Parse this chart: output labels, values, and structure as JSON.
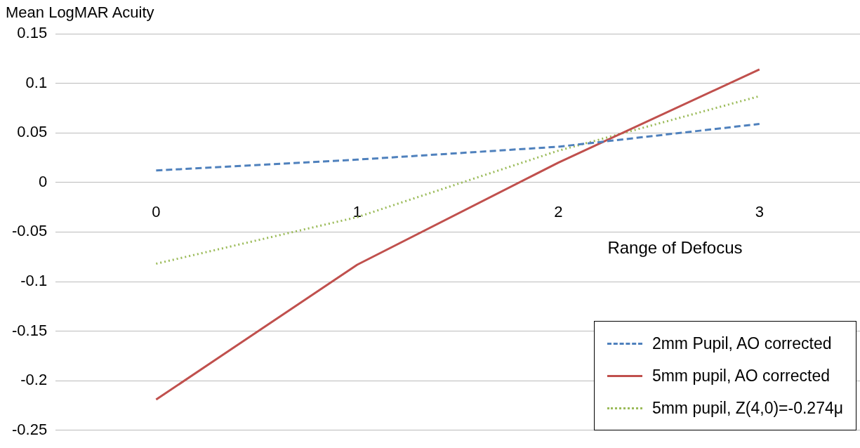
{
  "chart_data": {
    "type": "line",
    "ylabel": "Mean LogMAR Acuity",
    "xlabel": "Range of Defocus",
    "categories": [
      "0",
      "1",
      "2",
      "3"
    ],
    "series": [
      {
        "name": "2mm Pupil, AO corrected",
        "color": "#4f81bd",
        "line_style": "dashed",
        "values": [
          0.012,
          0.023,
          0.036,
          0.059
        ]
      },
      {
        "name": "5mm pupil, AO corrected",
        "color": "#c0504d",
        "line_style": "solid",
        "values": [
          -0.219,
          -0.083,
          0.02,
          0.114
        ]
      },
      {
        "name": "5mm pupil, Z(4,0)=-0.274μ",
        "color": "#9bbb59",
        "line_style": "dotted",
        "values": [
          -0.082,
          -0.035,
          0.032,
          0.087
        ]
      }
    ],
    "ylim": [
      -0.25,
      0.15
    ],
    "yticks": [
      -0.25,
      -0.2,
      -0.15,
      -0.1,
      -0.05,
      0,
      0.05,
      0.1,
      0.15
    ],
    "grid": "y",
    "legend": "bottom right",
    "marker": "none"
  }
}
